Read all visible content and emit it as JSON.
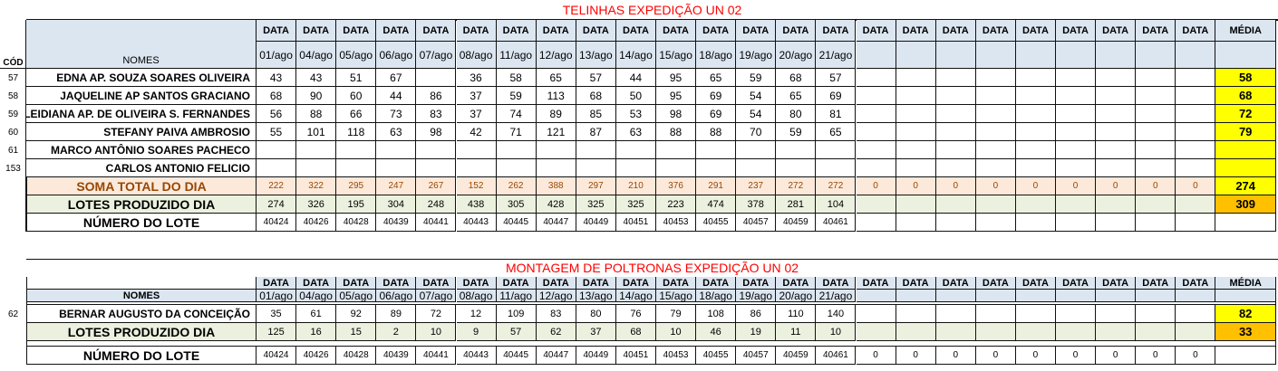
{
  "top_section": {
    "title": "TELINHAS EXPEDIÇÃO UN 02",
    "header_data_label": "DATA",
    "media_label": "MÉDIA",
    "cod_label": "CÓD",
    "nomes_label": "NOMES",
    "dates": [
      "01/ago",
      "04/ago",
      "05/ago",
      "06/ago",
      "07/ago",
      "08/ago",
      "11/ago",
      "12/ago",
      "13/ago",
      "14/ago",
      "15/ago",
      "18/ago",
      "19/ago",
      "20/ago",
      "21/ago"
    ],
    "rows": [
      {
        "cod": "57",
        "name": "EDNA AP. SOUZA SOARES OLIVEIRA",
        "values": [
          "43",
          "43",
          "51",
          "67",
          "",
          "36",
          "58",
          "65",
          "57",
          "44",
          "95",
          "65",
          "59",
          "68",
          "57"
        ],
        "media": "58"
      },
      {
        "cod": "58",
        "name": "JAQUELINE AP SANTOS GRACIANO",
        "values": [
          "68",
          "90",
          "60",
          "44",
          "86",
          "37",
          "59",
          "113",
          "68",
          "50",
          "95",
          "69",
          "54",
          "65",
          "69"
        ],
        "media": "68"
      },
      {
        "cod": "59",
        "name": "LEIDIANA AP. DE OLIVEIRA S. FERNANDES",
        "values": [
          "56",
          "88",
          "66",
          "73",
          "83",
          "37",
          "74",
          "89",
          "85",
          "53",
          "98",
          "69",
          "54",
          "80",
          "81"
        ],
        "media": "72"
      },
      {
        "cod": "60",
        "name": "STEFANY PAIVA AMBROSIO",
        "values": [
          "55",
          "101",
          "118",
          "63",
          "98",
          "42",
          "71",
          "121",
          "87",
          "63",
          "88",
          "88",
          "70",
          "59",
          "65"
        ],
        "media": "79"
      },
      {
        "cod": "61",
        "name": "MARCO ANTÔNIO SOARES PACHECO",
        "values": [
          "",
          "",
          "",
          "",
          "",
          "",
          "",
          "",
          "",
          "",
          "",
          "",
          "",
          "",
          ""
        ],
        "media": ""
      },
      {
        "cod": "153",
        "name": "CARLOS ANTONIO FELICIO",
        "values": [
          "",
          "",
          "",
          "",
          "",
          "",
          "",
          "",
          "",
          "",
          "",
          "",
          "",
          "",
          ""
        ],
        "media": ""
      }
    ],
    "soma": {
      "label": "SOMA TOTAL DO DIA",
      "values": [
        "222",
        "322",
        "295",
        "247",
        "267",
        "152",
        "262",
        "388",
        "297",
        "210",
        "376",
        "291",
        "237",
        "272",
        "272",
        "0",
        "0",
        "0",
        "0",
        "0",
        "0",
        "0",
        "0",
        "0"
      ],
      "media": "274"
    },
    "lotes": {
      "label": "LOTES PRODUZIDO DIA",
      "values": [
        "274",
        "326",
        "195",
        "304",
        "248",
        "438",
        "305",
        "428",
        "325",
        "325",
        "223",
        "474",
        "378",
        "281",
        "104"
      ],
      "media": "309"
    },
    "numero": {
      "label": "NÚMERO DO LOTE",
      "values": [
        "40424",
        "40426",
        "40428",
        "40439",
        "40441",
        "40443",
        "40445",
        "40447",
        "40449",
        "40451",
        "40453",
        "40455",
        "40457",
        "40459",
        "40461"
      ]
    }
  },
  "bottom_section": {
    "title": "MONTAGEM DE POLTRONAS EXPEDIÇÃO UN 02",
    "header_data_label": "DATA",
    "media_label": "MÉDIA",
    "nomes_label": "NOMES",
    "dates": [
      "01/ago",
      "04/ago",
      "05/ago",
      "06/ago",
      "07/ago",
      "08/ago",
      "11/ago",
      "12/ago",
      "13/ago",
      "14/ago",
      "15/ago",
      "18/ago",
      "19/ago",
      "20/ago",
      "21/ago"
    ],
    "rows": [
      {
        "cod": "62",
        "name": "BERNAR AUGUSTO DA CONCEIÇÃO",
        "values": [
          "35",
          "61",
          "92",
          "89",
          "72",
          "12",
          "109",
          "83",
          "80",
          "76",
          "79",
          "108",
          "86",
          "110",
          "140"
        ],
        "media": "82"
      }
    ],
    "lotes": {
      "label": "LOTES PRODUZIDO DIA",
      "values": [
        "125",
        "16",
        "15",
        "2",
        "10",
        "9",
        "57",
        "62",
        "37",
        "68",
        "10",
        "46",
        "19",
        "11",
        "10"
      ],
      "media": "33"
    },
    "numero": {
      "label": "NÚMERO DO LOTE",
      "values": [
        "40424",
        "40426",
        "40428",
        "40439",
        "40441",
        "40443",
        "40445",
        "40447",
        "40449",
        "40451",
        "40453",
        "40455",
        "40457",
        "40459",
        "40461",
        "0",
        "0",
        "0",
        "0",
        "0",
        "0",
        "0",
        "0",
        "0"
      ]
    }
  },
  "colors": {
    "header_fill": "#dce6f1",
    "soma_fill": "#fde9d9",
    "lotes_fill": "#ebf1de",
    "media_yellow": "#ffff00",
    "media_orange": "#ffc000",
    "title_red": "#ff0000"
  }
}
